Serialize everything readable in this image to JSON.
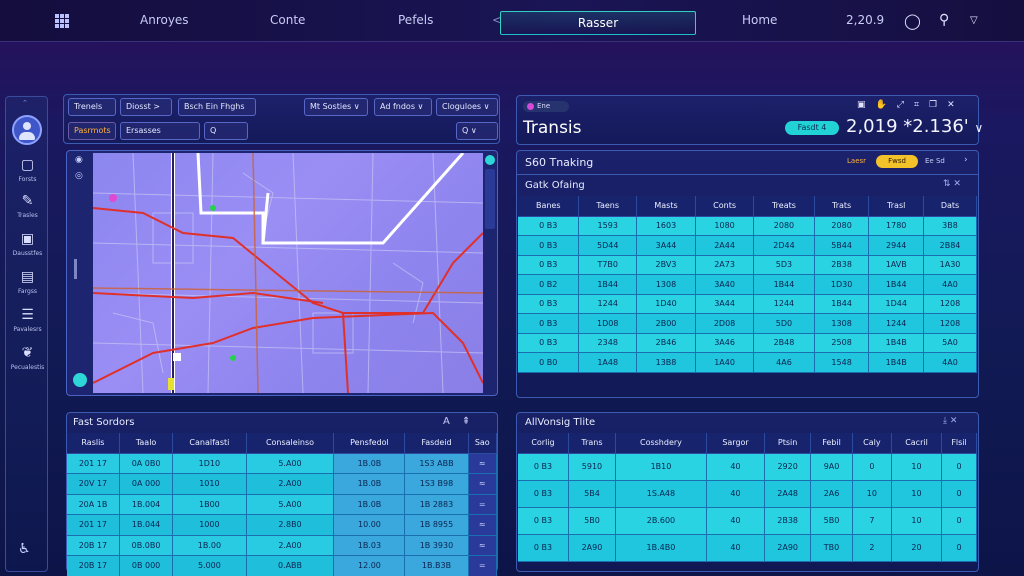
{
  "nav": {
    "items": [
      "Anroyes",
      "Conte",
      "Pefels",
      "Rasser",
      "Home"
    ],
    "time": "2,20.9",
    "chevron": "<"
  },
  "rail": {
    "items": [
      {
        "icon": "document-icon",
        "label": "Forsts"
      },
      {
        "icon": "pen-icon",
        "label": "Trasles"
      },
      {
        "icon": "calendar-icon",
        "label": "Dausstfes"
      },
      {
        "icon": "chart-icon",
        "label": "Fargss"
      },
      {
        "icon": "layers-icon",
        "label": "Pavalesrs"
      },
      {
        "icon": "leaf-icon",
        "label": "Pecualestis"
      }
    ]
  },
  "filters": {
    "row1": [
      "Trenels",
      "Diosst >",
      "Bsch Ein Fhghs"
    ],
    "dropdowns": [
      "Mt Sosties ∨",
      "Ad fndos ∨",
      "Cloguloes ∨"
    ],
    "row2": [
      "Pasrmots",
      "Ersasses",
      "Q"
    ],
    "search": "Q"
  },
  "transit": {
    "badge": "Ene",
    "title": "Transis",
    "button": "Fasdt 4",
    "value": "2,019 *2.136'"
  },
  "tracking": {
    "title": "S60 Tnaking",
    "toggle_left": "Laesr",
    "toggle_on": "Fwsd",
    "toggle_right": "Ee Sd"
  },
  "gate_table": {
    "title": "Gatk Ofaing",
    "columns": [
      "Banes",
      "Taens",
      "Masts",
      "Conts",
      "Treats",
      "Trats",
      "Trasl",
      "Dats"
    ],
    "rows": [
      [
        "0 B3",
        "1593",
        "1603",
        "1080",
        "2080",
        "2080",
        "1780",
        "3B8"
      ],
      [
        "0 B3",
        "5D44",
        "3A44",
        "2A44",
        "2D44",
        "5B44",
        "2944",
        "2B84"
      ],
      [
        "0 B3",
        "T7B0",
        "2BV3",
        "2A73",
        "5D3",
        "2B38",
        "1AVB",
        "1A30"
      ],
      [
        "0 B2",
        "1B44",
        "1308",
        "3A40",
        "1B44",
        "1D30",
        "1B44",
        "4A0"
      ],
      [
        "0 B3",
        "1244",
        "1D40",
        "3A44",
        "1244",
        "1B44",
        "1D44",
        "1208"
      ],
      [
        "0 B3",
        "1D08",
        "2B00",
        "2D08",
        "5D0",
        "1308",
        "1244",
        "1208"
      ],
      [
        "0 B3",
        "2348",
        "2B46",
        "3A46",
        "2B48",
        "2508",
        "1B4B",
        "5A0"
      ],
      [
        "0 B0",
        "1A48",
        "13B8",
        "1A40",
        "4A6",
        "1548",
        "1B4B",
        "4A0"
      ]
    ]
  },
  "fleet_table": {
    "title": "Fast Sordors",
    "columns": [
      "Raslis",
      "Taalo",
      "Canalfasti",
      "Consaleinso",
      "Pensfedol",
      "Fasdeid",
      "Sao"
    ],
    "rows": [
      [
        "201 17",
        "0A 0B0",
        "1D10",
        "5.A00",
        "1B.0B",
        "1S3 ABB",
        "≈"
      ],
      [
        "20V 17",
        "0A 000",
        "1010",
        "2.A00",
        "1B.0B",
        "1S3 B98",
        "≈"
      ],
      [
        "20A 1B",
        "1B.004",
        "1B00",
        "5.A00",
        "1B.0B",
        "1B 2883",
        "="
      ],
      [
        "201 17",
        "1B.044",
        "1000",
        "2.8B0",
        "10.00",
        "1B 8955",
        "≈"
      ],
      [
        "20B 17",
        "0B.0B0",
        "1B.00",
        "2.A00",
        "1B.03",
        "1B 3930",
        "≈"
      ],
      [
        "20B 17",
        "0B 000",
        "5.000",
        "0.ABB",
        "12.00",
        "1B.B3B",
        "="
      ]
    ]
  },
  "route_table": {
    "title": "AllVonsig Tlite",
    "columns": [
      "Corlig",
      "Trans",
      "Cosshdery",
      "Sargor",
      "Ptsin",
      "Febil",
      "Caly",
      "Cacril",
      "Flsil"
    ],
    "rows": [
      [
        "0 B3",
        "5910",
        "1B10",
        "40",
        "2920",
        "9A0",
        "0",
        "10",
        "0"
      ],
      [
        "0 B3",
        "5B4",
        "1S.A48",
        "40",
        "2A48",
        "2A6",
        "10",
        "10",
        "0"
      ],
      [
        "0 B3",
        "5B0",
        "2B.600",
        "40",
        "2B38",
        "5B0",
        "7",
        "10",
        "0"
      ],
      [
        "0 B3",
        "2A90",
        "1B.4B0",
        "40",
        "2A90",
        "TB0",
        "2",
        "20",
        "0"
      ]
    ]
  }
}
